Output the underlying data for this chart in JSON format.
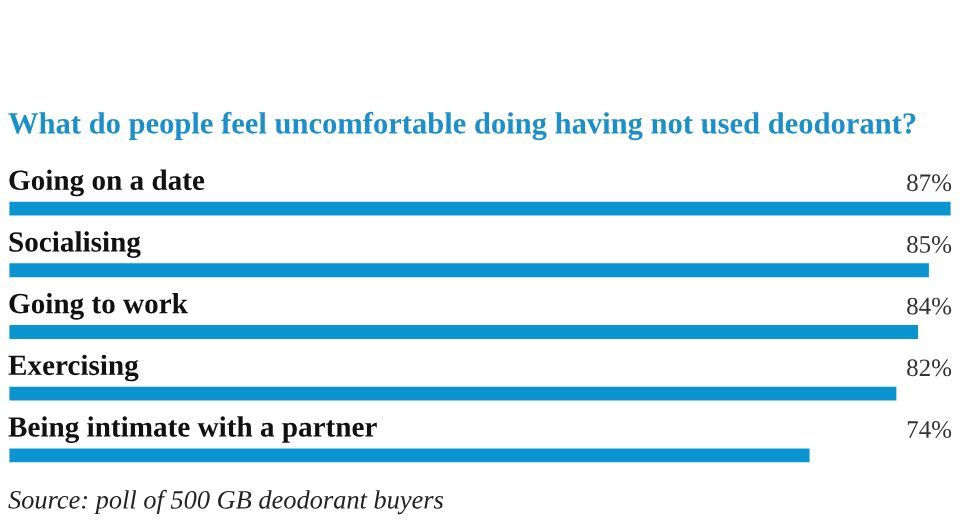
{
  "chart_data": {
    "type": "bar",
    "orientation": "horizontal",
    "title": "What do people feel uncomfortable doing having not used deodorant?",
    "categories": [
      "Going on a date",
      "Socialising",
      "Going to work",
      "Exercising",
      "Being intimate with a partner"
    ],
    "values": [
      87,
      85,
      84,
      82,
      74
    ],
    "value_labels": [
      "87%",
      "85%",
      "84%",
      "82%",
      "74%"
    ],
    "color": "#0a95d1",
    "annotations": [
      "Source: poll of 500 GB deodorant buyers"
    ]
  }
}
